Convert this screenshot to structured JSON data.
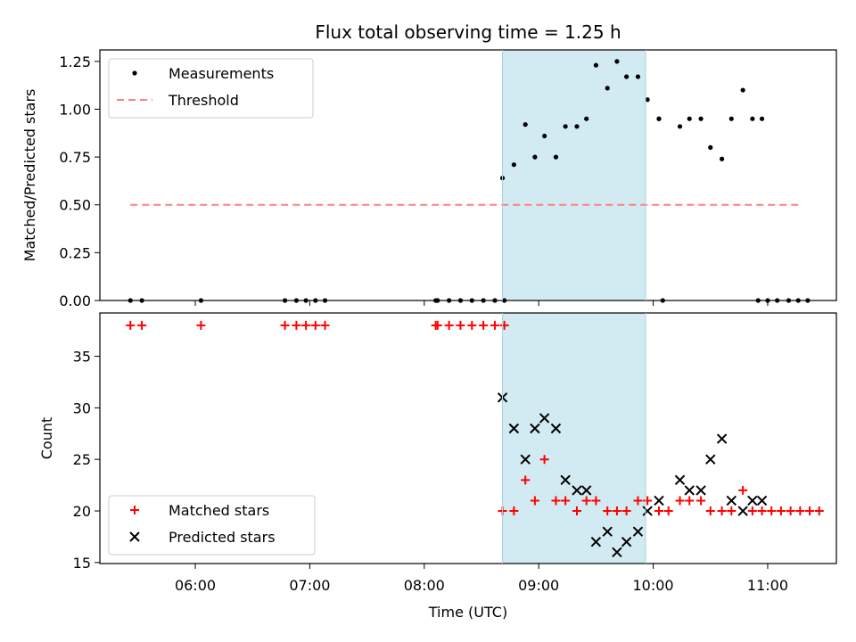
{
  "chart_data": [
    {
      "type": "scatter",
      "title": "Flux total observing time = 1.25 h",
      "xlabel": "",
      "ylabel": "Matched/Predicted stars",
      "xlim": [
        "05:10",
        "11:36"
      ],
      "ylim": [
        0,
        1.31
      ],
      "yticks": [
        "0.00",
        "0.25",
        "0.50",
        "0.75",
        "1.00",
        "1.25"
      ],
      "ytick_values": [
        0,
        0.25,
        0.5,
        0.75,
        1.0,
        1.25
      ],
      "xticks": [
        "06:00",
        "07:00",
        "08:00",
        "09:00",
        "10:00",
        "11:00"
      ],
      "legend": {
        "placement": "upper-left",
        "entries": [
          "Measurements",
          "Threshold"
        ]
      },
      "highlight": {
        "start": "08:41",
        "end": "09:56",
        "color": "#add8e6"
      },
      "threshold": {
        "name": "Threshold",
        "value": 0.5,
        "x_start": "05:26",
        "x_end": "11:17",
        "color": "#ff7f7f"
      },
      "series": [
        {
          "name": "Measurements",
          "color": "#000000",
          "points": [
            [
              "05:26",
              0
            ],
            [
              "05:32",
              0
            ],
            [
              "06:03",
              0
            ],
            [
              "06:47",
              0
            ],
            [
              "06:53",
              0
            ],
            [
              "06:58",
              0
            ],
            [
              "07:03",
              0
            ],
            [
              "07:08",
              0
            ],
            [
              "08:06",
              0
            ],
            [
              "08:07",
              0
            ],
            [
              "08:13",
              0
            ],
            [
              "08:19",
              0
            ],
            [
              "08:25",
              0
            ],
            [
              "08:31",
              0
            ],
            [
              "08:37",
              0
            ],
            [
              "08:42",
              0
            ],
            [
              "08:41",
              0.64
            ],
            [
              "08:47",
              0.71
            ],
            [
              "08:53",
              0.92
            ],
            [
              "08:58",
              0.75
            ],
            [
              "09:03",
              0.86
            ],
            [
              "09:09",
              0.75
            ],
            [
              "09:14",
              0.91
            ],
            [
              "09:20",
              0.91
            ],
            [
              "09:25",
              0.95
            ],
            [
              "09:30",
              1.23
            ],
            [
              "09:36",
              1.11
            ],
            [
              "09:41",
              1.25
            ],
            [
              "09:46",
              1.17
            ],
            [
              "09:52",
              1.17
            ],
            [
              "09:57",
              1.05
            ],
            [
              "10:03",
              0.95
            ],
            [
              "10:03",
              0.95
            ],
            [
              "10:05",
              0
            ],
            [
              "10:14",
              0.91
            ],
            [
              "10:19",
              0.95
            ],
            [
              "10:25",
              0.95
            ],
            [
              "10:30",
              0.8
            ],
            [
              "10:36",
              0.74
            ],
            [
              "10:41",
              0.95
            ],
            [
              "10:47",
              1.1
            ],
            [
              "10:52",
              0.95
            ],
            [
              "10:57",
              0.95
            ],
            [
              "10:55",
              0
            ],
            [
              "11:00",
              0
            ],
            [
              "11:05",
              0
            ],
            [
              "11:11",
              0
            ],
            [
              "11:16",
              0
            ],
            [
              "11:21",
              0
            ]
          ]
        }
      ]
    },
    {
      "type": "scatter",
      "title": "",
      "xlabel": "Time (UTC)",
      "ylabel": "Count",
      "xlim": [
        "05:10",
        "11:36"
      ],
      "ylim": [
        14.9,
        39.2
      ],
      "yticks": [
        "15",
        "20",
        "25",
        "30",
        "35"
      ],
      "ytick_values": [
        15,
        20,
        25,
        30,
        35
      ],
      "xticks": [
        "06:00",
        "07:00",
        "08:00",
        "09:00",
        "10:00",
        "11:00"
      ],
      "legend": {
        "placement": "lower-left",
        "entries": [
          "Matched stars",
          "Predicted stars"
        ]
      },
      "highlight": {
        "start": "08:41",
        "end": "09:56",
        "color": "#add8e6"
      },
      "series": [
        {
          "name": "Matched stars",
          "color": "#ff0000",
          "marker": "+",
          "points": [
            [
              "05:26",
              38
            ],
            [
              "05:32",
              38
            ],
            [
              "06:03",
              38
            ],
            [
              "06:47",
              38
            ],
            [
              "06:53",
              38
            ],
            [
              "06:58",
              38
            ],
            [
              "07:03",
              38
            ],
            [
              "07:08",
              38
            ],
            [
              "08:06",
              38
            ],
            [
              "08:07",
              38
            ],
            [
              "08:13",
              38
            ],
            [
              "08:19",
              38
            ],
            [
              "08:25",
              38
            ],
            [
              "08:31",
              38
            ],
            [
              "08:37",
              38
            ],
            [
              "08:42",
              38
            ],
            [
              "08:41",
              20
            ],
            [
              "08:47",
              20
            ],
            [
              "08:53",
              23
            ],
            [
              "08:58",
              21
            ],
            [
              "09:03",
              25
            ],
            [
              "09:09",
              21
            ],
            [
              "09:14",
              21
            ],
            [
              "09:20",
              20
            ],
            [
              "09:25",
              21
            ],
            [
              "09:30",
              21
            ],
            [
              "09:36",
              20
            ],
            [
              "09:41",
              20
            ],
            [
              "09:46",
              20
            ],
            [
              "09:52",
              21
            ],
            [
              "09:57",
              21
            ],
            [
              "10:03",
              20
            ],
            [
              "10:08",
              20
            ],
            [
              "10:14",
              21
            ],
            [
              "10:19",
              21
            ],
            [
              "10:25",
              21
            ],
            [
              "10:30",
              20
            ],
            [
              "10:36",
              20
            ],
            [
              "10:41",
              20
            ],
            [
              "10:47",
              22
            ],
            [
              "10:52",
              20
            ],
            [
              "10:57",
              20
            ],
            [
              "11:02",
              20
            ],
            [
              "11:07",
              20
            ],
            [
              "11:12",
              20
            ],
            [
              "11:17",
              20
            ],
            [
              "11:22",
              20
            ],
            [
              "11:27",
              20
            ]
          ]
        },
        {
          "name": "Predicted stars",
          "color": "#000000",
          "marker": "x",
          "points": [
            [
              "08:41",
              31
            ],
            [
              "08:47",
              28
            ],
            [
              "08:53",
              25
            ],
            [
              "08:58",
              28
            ],
            [
              "09:03",
              29
            ],
            [
              "09:09",
              28
            ],
            [
              "09:14",
              23
            ],
            [
              "09:20",
              22
            ],
            [
              "09:25",
              22
            ],
            [
              "09:30",
              17
            ],
            [
              "09:36",
              18
            ],
            [
              "09:41",
              16
            ],
            [
              "09:46",
              17
            ],
            [
              "09:52",
              18
            ],
            [
              "09:57",
              20
            ],
            [
              "10:03",
              21
            ],
            [
              "10:14",
              23
            ],
            [
              "10:19",
              22
            ],
            [
              "10:25",
              22
            ],
            [
              "10:30",
              25
            ],
            [
              "10:36",
              27
            ],
            [
              "10:41",
              21
            ],
            [
              "10:47",
              20
            ],
            [
              "10:52",
              21
            ],
            [
              "10:57",
              21
            ]
          ]
        }
      ]
    }
  ]
}
